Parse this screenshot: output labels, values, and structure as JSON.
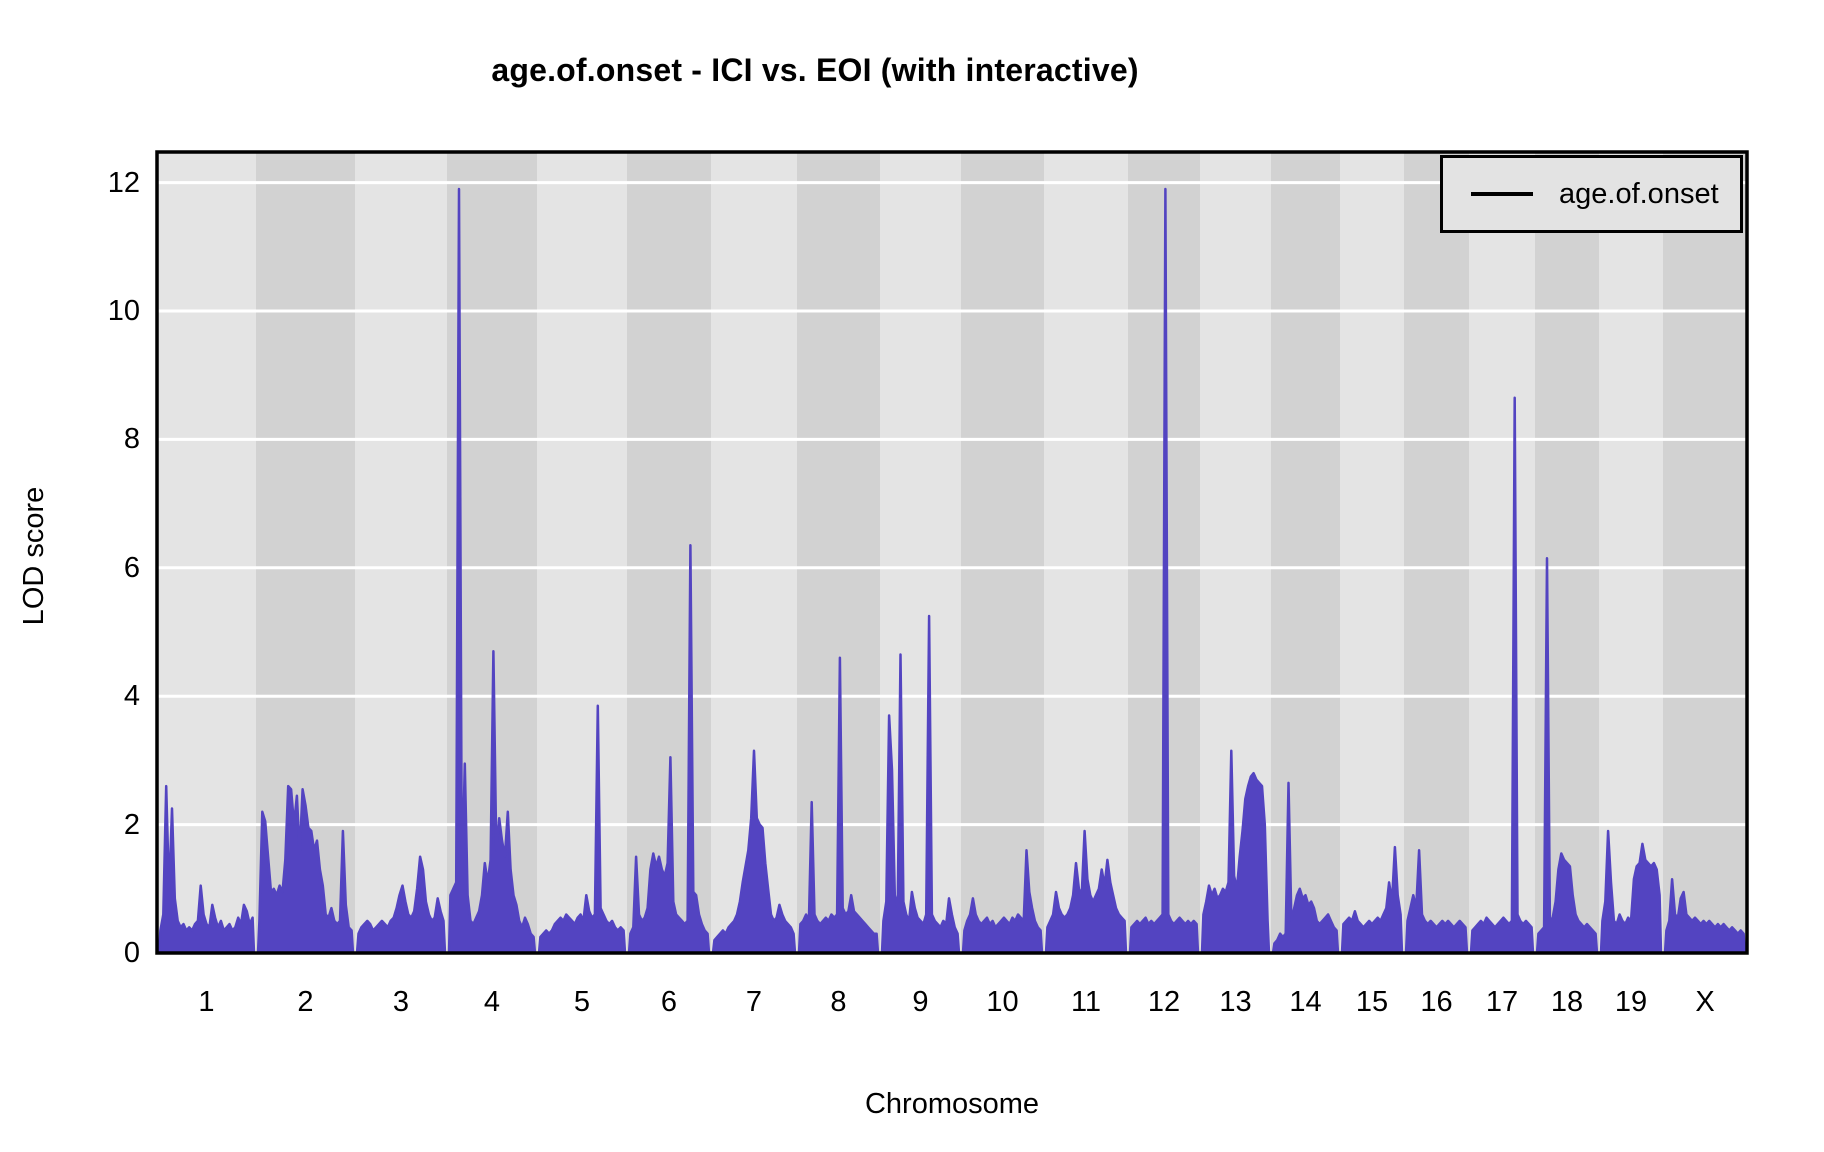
{
  "title": "age.of.onset - ICI vs. EOI (with interactive)",
  "legend": {
    "label": "age.of.onset"
  },
  "axes": {
    "y_label": "LOD score",
    "x_label": "Chromosome"
  },
  "colors": {
    "curve": "#5344c1",
    "band_light": "#e4e4e4",
    "band_dark": "#d2d2d2",
    "gridline": "#ffffff",
    "panel_border": "#000000",
    "legend_bg": "#e3e3e3"
  },
  "chart_data": {
    "type": "line",
    "title": "age.of.onset - ICI vs. EOI (with interactive)",
    "xlabel": "Chromosome",
    "ylabel": "LOD score",
    "series_name": "age.of.onset",
    "ylim": [
      0,
      12.48
    ],
    "y_ticks": [
      0,
      2,
      4,
      6,
      8,
      10,
      12
    ],
    "grid": "horizontal white gridlines on alternating gray chromosome bands",
    "legend_position": "top-right",
    "categories": [
      "1",
      "2",
      "3",
      "4",
      "5",
      "6",
      "7",
      "8",
      "9",
      "10",
      "11",
      "12",
      "13",
      "14",
      "15",
      "16",
      "17",
      "18",
      "19",
      "X"
    ],
    "peak_summary": [
      {
        "chr": "1",
        "max_lod": 2.6
      },
      {
        "chr": "2",
        "max_lod": 2.6
      },
      {
        "chr": "3",
        "max_lod": 1.5
      },
      {
        "chr": "4",
        "max_lod": 11.9
      },
      {
        "chr": "5",
        "max_lod": 3.85
      },
      {
        "chr": "6",
        "max_lod": 6.35
      },
      {
        "chr": "7",
        "max_lod": 3.15
      },
      {
        "chr": "8",
        "max_lod": 4.6
      },
      {
        "chr": "9",
        "max_lod": 5.25
      },
      {
        "chr": "10",
        "max_lod": 1.6
      },
      {
        "chr": "11",
        "max_lod": 1.9
      },
      {
        "chr": "12",
        "max_lod": 11.9
      },
      {
        "chr": "13",
        "max_lod": 3.15
      },
      {
        "chr": "14",
        "max_lod": 2.65
      },
      {
        "chr": "15",
        "max_lod": 1.65
      },
      {
        "chr": "16",
        "max_lod": 1.6
      },
      {
        "chr": "17",
        "max_lod": 8.65
      },
      {
        "chr": "18",
        "max_lod": 6.15
      },
      {
        "chr": "19",
        "max_lod": 1.9
      },
      {
        "chr": "X",
        "max_lod": 1.15
      }
    ],
    "chromosomes": [
      {
        "name": "1",
        "rel_width": 99,
        "lod": [
          0.35,
          0.6,
          2.6,
          0.9,
          2.25,
          0.85,
          0.5,
          0.4,
          0.45,
          0.35,
          0.4,
          0.35,
          0.45,
          0.5,
          1.05,
          0.6,
          0.45,
          0.4,
          0.75,
          0.55,
          0.4,
          0.5,
          0.35,
          0.4,
          0.45,
          0.35,
          0.4,
          0.55,
          0.45,
          0.75,
          0.65,
          0.45,
          0.55
        ]
      },
      {
        "name": "2",
        "rel_width": 99,
        "lod": [
          0.5,
          2.2,
          2.05,
          1.5,
          0.95,
          1.0,
          0.9,
          1.05,
          0.95,
          1.45,
          2.6,
          2.55,
          2.0,
          2.45,
          1.55,
          2.55,
          2.3,
          1.95,
          1.9,
          1.6,
          1.75,
          1.3,
          1.05,
          0.6,
          0.55,
          0.7,
          0.5,
          0.45,
          0.5,
          1.9,
          0.75,
          0.4,
          0.35
        ]
      },
      {
        "name": "3",
        "rel_width": 92,
        "lod": [
          0.3,
          0.4,
          0.45,
          0.5,
          0.45,
          0.35,
          0.4,
          0.45,
          0.5,
          0.45,
          0.4,
          0.5,
          0.55,
          0.7,
          0.9,
          1.05,
          0.8,
          0.6,
          0.55,
          0.65,
          1.0,
          1.5,
          1.3,
          0.8,
          0.6,
          0.5,
          0.55,
          0.85,
          0.65,
          0.5
        ]
      },
      {
        "name": "4",
        "rel_width": 90,
        "lod": [
          0.9,
          1.0,
          1.1,
          11.9,
          0.95,
          2.95,
          0.9,
          0.5,
          0.45,
          0.55,
          0.65,
          0.9,
          1.4,
          1.1,
          1.45,
          4.7,
          1.6,
          2.1,
          1.75,
          1.5,
          2.2,
          1.3,
          0.9,
          0.75,
          0.5,
          0.4,
          0.55,
          0.45,
          0.3,
          0.25
        ]
      },
      {
        "name": "5",
        "rel_width": 90,
        "lod": [
          0.25,
          0.3,
          0.35,
          0.3,
          0.35,
          0.45,
          0.5,
          0.55,
          0.5,
          0.6,
          0.55,
          0.5,
          0.45,
          0.55,
          0.6,
          0.5,
          0.9,
          0.65,
          0.55,
          0.6,
          3.85,
          0.7,
          0.6,
          0.5,
          0.45,
          0.5,
          0.4,
          0.35,
          0.4,
          0.35
        ]
      },
      {
        "name": "6",
        "rel_width": 84,
        "lod": [
          0.3,
          0.4,
          1.5,
          0.6,
          0.5,
          0.55,
          0.7,
          1.3,
          1.55,
          1.35,
          1.5,
          1.3,
          1.2,
          1.4,
          3.05,
          0.8,
          0.6,
          0.55,
          0.5,
          0.45,
          0.5,
          6.35,
          0.95,
          0.9,
          0.6,
          0.45,
          0.35,
          0.3
        ]
      },
      {
        "name": "7",
        "rel_width": 86,
        "lod": [
          0.2,
          0.25,
          0.3,
          0.35,
          0.3,
          0.4,
          0.45,
          0.5,
          0.6,
          0.8,
          1.1,
          1.35,
          1.6,
          2.1,
          3.15,
          2.1,
          2.0,
          1.95,
          1.4,
          1.0,
          0.6,
          0.5,
          0.55,
          0.75,
          0.6,
          0.5,
          0.45,
          0.4,
          0.3
        ]
      },
      {
        "name": "8",
        "rel_width": 83,
        "lod": [
          0.45,
          0.5,
          0.6,
          0.5,
          2.35,
          0.6,
          0.5,
          0.45,
          0.5,
          0.55,
          0.5,
          0.6,
          0.55,
          0.6,
          4.6,
          0.7,
          0.6,
          0.65,
          0.9,
          0.65,
          0.6,
          0.55,
          0.5,
          0.45,
          0.4,
          0.35,
          0.3,
          0.3
        ]
      },
      {
        "name": "9",
        "rel_width": 81,
        "lod": [
          0.5,
          0.8,
          3.7,
          2.85,
          0.9,
          0.7,
          4.65,
          0.8,
          0.6,
          0.5,
          0.95,
          0.7,
          0.55,
          0.5,
          0.45,
          0.6,
          5.25,
          0.6,
          0.5,
          0.45,
          0.4,
          0.5,
          0.45,
          0.85,
          0.6,
          0.4,
          0.3
        ]
      },
      {
        "name": "10",
        "rel_width": 83,
        "lod": [
          0.35,
          0.5,
          0.6,
          0.85,
          0.6,
          0.5,
          0.45,
          0.5,
          0.55,
          0.45,
          0.5,
          0.4,
          0.45,
          0.5,
          0.55,
          0.5,
          0.45,
          0.55,
          0.5,
          0.6,
          0.55,
          0.5,
          1.6,
          0.95,
          0.7,
          0.5,
          0.4,
          0.35
        ]
      },
      {
        "name": "11",
        "rel_width": 84,
        "lod": [
          0.4,
          0.5,
          0.6,
          0.95,
          0.7,
          0.6,
          0.55,
          0.6,
          0.7,
          0.9,
          1.4,
          1.0,
          0.9,
          1.9,
          1.15,
          0.9,
          0.8,
          0.9,
          1.0,
          1.3,
          1.05,
          1.45,
          1.1,
          0.9,
          0.7,
          0.6,
          0.55,
          0.5
        ]
      },
      {
        "name": "12",
        "rel_width": 72,
        "lod": [
          0.4,
          0.45,
          0.5,
          0.45,
          0.5,
          0.55,
          0.45,
          0.5,
          0.45,
          0.5,
          0.55,
          0.6,
          11.9,
          0.6,
          0.5,
          0.45,
          0.5,
          0.55,
          0.5,
          0.45,
          0.5,
          0.45,
          0.5,
          0.45
        ]
      },
      {
        "name": "13",
        "rel_width": 71,
        "lod": [
          0.6,
          0.8,
          1.05,
          0.9,
          1.0,
          0.85,
          0.9,
          1.0,
          0.95,
          1.1,
          3.15,
          1.2,
          1.0,
          1.5,
          1.9,
          2.4,
          2.6,
          2.75,
          2.8,
          2.7,
          2.65,
          2.6,
          2.0,
          0.5
        ]
      },
      {
        "name": "14",
        "rel_width": 69,
        "lod": [
          0.15,
          0.2,
          0.3,
          0.25,
          0.3,
          2.65,
          0.5,
          0.7,
          0.9,
          1.0,
          0.85,
          0.9,
          0.75,
          0.8,
          0.7,
          0.5,
          0.45,
          0.5,
          0.55,
          0.6,
          0.5,
          0.4,
          0.35
        ]
      },
      {
        "name": "15",
        "rel_width": 64,
        "lod": [
          0.45,
          0.5,
          0.55,
          0.5,
          0.65,
          0.5,
          0.45,
          0.4,
          0.45,
          0.5,
          0.45,
          0.5,
          0.55,
          0.5,
          0.6,
          0.7,
          1.1,
          0.8,
          1.65,
          0.9,
          0.6
        ]
      },
      {
        "name": "16",
        "rel_width": 65,
        "lod": [
          0.5,
          0.7,
          0.9,
          0.7,
          1.6,
          0.6,
          0.5,
          0.45,
          0.5,
          0.45,
          0.4,
          0.45,
          0.5,
          0.45,
          0.5,
          0.45,
          0.4,
          0.45,
          0.5,
          0.45,
          0.4
        ]
      },
      {
        "name": "17",
        "rel_width": 66,
        "lod": [
          0.35,
          0.4,
          0.45,
          0.5,
          0.45,
          0.55,
          0.5,
          0.45,
          0.4,
          0.45,
          0.5,
          0.55,
          0.5,
          0.45,
          0.5,
          8.65,
          0.6,
          0.5,
          0.45,
          0.5,
          0.45,
          0.4
        ]
      },
      {
        "name": "18",
        "rel_width": 64,
        "lod": [
          0.3,
          0.35,
          0.4,
          6.15,
          0.5,
          0.55,
          0.8,
          1.3,
          1.55,
          1.45,
          1.4,
          1.35,
          0.9,
          0.6,
          0.5,
          0.45,
          0.4,
          0.45,
          0.4,
          0.35,
          0.3
        ]
      },
      {
        "name": "19",
        "rel_width": 64,
        "lod": [
          0.5,
          0.8,
          1.9,
          1.1,
          0.5,
          0.45,
          0.6,
          0.5,
          0.45,
          0.55,
          0.5,
          1.15,
          1.35,
          1.4,
          1.7,
          1.45,
          1.4,
          1.35,
          1.4,
          1.3,
          0.9
        ]
      },
      {
        "name": "X",
        "rel_width": 84,
        "lod": [
          0.35,
          0.5,
          1.15,
          0.6,
          0.55,
          0.85,
          0.95,
          0.6,
          0.55,
          0.5,
          0.55,
          0.5,
          0.45,
          0.5,
          0.45,
          0.5,
          0.45,
          0.4,
          0.45,
          0.4,
          0.45,
          0.4,
          0.35,
          0.4,
          0.35,
          0.3,
          0.35,
          0.3
        ]
      }
    ]
  }
}
